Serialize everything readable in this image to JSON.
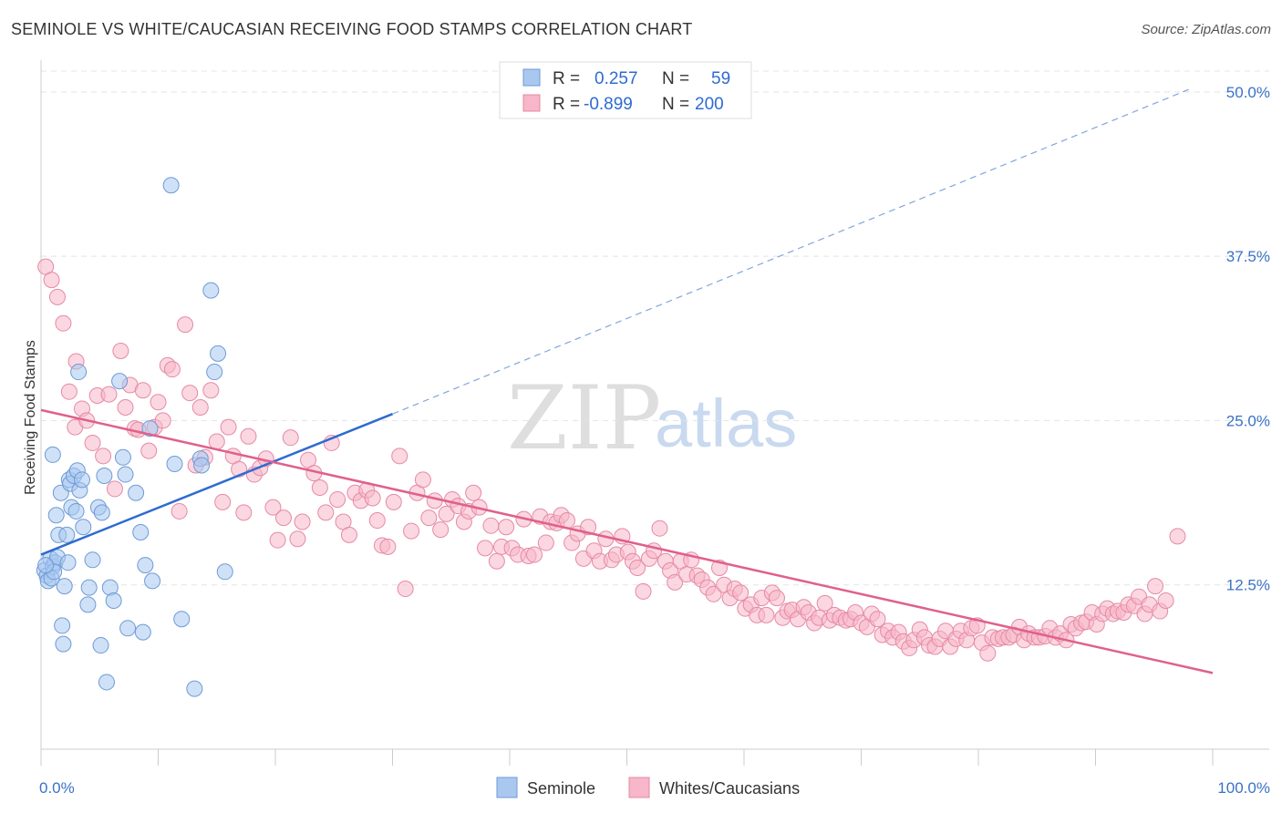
{
  "header": {
    "title": "SEMINOLE VS WHITE/CAUCASIAN RECEIVING FOOD STAMPS CORRELATION CHART",
    "source": "Source: ZipAtlas.com"
  },
  "watermark": {
    "zip": "ZIP",
    "atlas": "atlas"
  },
  "legend_top": {
    "rows": [
      {
        "r_label": "R =",
        "r_value": "0.257",
        "n_label": "N =",
        "n_value": "59",
        "color": "#a8c8f0"
      },
      {
        "r_label": "R =",
        "r_value": "-0.899",
        "n_label": "N =",
        "n_value": "200",
        "color": "#f7b6c9"
      }
    ]
  },
  "legend_bottom": {
    "items": [
      "Seminole",
      "Whites/Caucasians"
    ]
  },
  "chart_data": {
    "type": "scatter",
    "title": "SEMINOLE VS WHITE/CAUCASIAN RECEIVING FOOD STAMPS CORRELATION CHART",
    "xlabel": "",
    "ylabel": "Receiving Food Stamps",
    "xlim": [
      0,
      100
    ],
    "ylim": [
      0,
      52
    ],
    "x_tick_labels": [
      "0.0%",
      "100.0%"
    ],
    "y_ticks": [
      12.5,
      25.0,
      37.5,
      50.0
    ],
    "y_tick_labels": [
      "12.5%",
      "25.0%",
      "37.5%",
      "50.0%"
    ],
    "grid": true,
    "series": [
      {
        "name": "Seminole",
        "color": "#a8c8f0",
        "stroke": "#6f9ad6",
        "line_color": "#2f6bd0",
        "r": 0.257,
        "n": 59,
        "trend": {
          "x0": 0,
          "y0": 14.8,
          "x1": 30,
          "y1": 25.5,
          "dash_to_x": 98,
          "dash_to_y": 50.2
        },
        "points": [
          [
            0.3,
            13.6
          ],
          [
            0.5,
            13.2
          ],
          [
            0.8,
            14.5
          ],
          [
            1.0,
            13.9
          ],
          [
            1.2,
            14.2
          ],
          [
            0.6,
            12.8
          ],
          [
            0.9,
            13.0
          ],
          [
            1.4,
            14.6
          ],
          [
            1.1,
            13.5
          ],
          [
            0.4,
            14.0
          ],
          [
            1.0,
            22.4
          ],
          [
            1.3,
            17.8
          ],
          [
            1.5,
            16.3
          ],
          [
            1.7,
            19.5
          ],
          [
            1.8,
            9.4
          ],
          [
            1.9,
            8.0
          ],
          [
            2.0,
            12.4
          ],
          [
            2.2,
            16.3
          ],
          [
            2.3,
            14.2
          ],
          [
            2.4,
            20.5
          ],
          [
            2.5,
            20.2
          ],
          [
            2.6,
            18.4
          ],
          [
            2.8,
            20.8
          ],
          [
            3.0,
            18.1
          ],
          [
            3.1,
            21.2
          ],
          [
            3.2,
            28.7
          ],
          [
            3.3,
            19.7
          ],
          [
            3.5,
            20.5
          ],
          [
            3.6,
            16.9
          ],
          [
            4.0,
            11.0
          ],
          [
            4.1,
            12.3
          ],
          [
            4.4,
            14.4
          ],
          [
            4.9,
            18.4
          ],
          [
            5.1,
            7.9
          ],
          [
            5.2,
            18.0
          ],
          [
            5.4,
            20.8
          ],
          [
            5.6,
            5.1
          ],
          [
            5.9,
            12.3
          ],
          [
            6.2,
            11.3
          ],
          [
            6.7,
            28.0
          ],
          [
            7.0,
            22.2
          ],
          [
            7.2,
            20.9
          ],
          [
            7.4,
            9.2
          ],
          [
            8.1,
            19.5
          ],
          [
            8.5,
            16.5
          ],
          [
            8.7,
            8.9
          ],
          [
            8.9,
            14.0
          ],
          [
            9.3,
            24.4
          ],
          [
            9.5,
            12.8
          ],
          [
            11.1,
            42.9
          ],
          [
            11.4,
            21.7
          ],
          [
            12.0,
            9.9
          ],
          [
            13.1,
            4.6
          ],
          [
            13.6,
            22.1
          ],
          [
            13.7,
            21.6
          ],
          [
            14.5,
            34.9
          ],
          [
            14.8,
            28.7
          ],
          [
            15.1,
            30.1
          ],
          [
            15.7,
            13.5
          ]
        ]
      },
      {
        "name": "Whites/Caucasians",
        "color": "#f7b6c9",
        "stroke": "#e58aa5",
        "line_color": "#e0608c",
        "r": -0.899,
        "n": 200,
        "trend": {
          "x0": 0,
          "y0": 25.8,
          "x1": 100,
          "y1": 5.8
        },
        "points": [
          [
            0.4,
            36.7
          ],
          [
            0.9,
            35.7
          ],
          [
            1.4,
            34.4
          ],
          [
            1.9,
            32.4
          ],
          [
            2.4,
            27.2
          ],
          [
            2.9,
            24.5
          ],
          [
            3.0,
            29.5
          ],
          [
            3.5,
            25.9
          ],
          [
            3.9,
            25.0
          ],
          [
            4.4,
            23.3
          ],
          [
            4.8,
            26.9
          ],
          [
            5.3,
            22.3
          ],
          [
            5.8,
            27.0
          ],
          [
            6.3,
            19.8
          ],
          [
            6.8,
            30.3
          ],
          [
            7.2,
            26.0
          ],
          [
            7.6,
            27.7
          ],
          [
            8.0,
            24.4
          ],
          [
            8.3,
            24.3
          ],
          [
            8.7,
            27.3
          ],
          [
            9.2,
            22.7
          ],
          [
            9.7,
            24.5
          ],
          [
            10.0,
            26.4
          ],
          [
            10.4,
            25.0
          ],
          [
            10.8,
            29.2
          ],
          [
            11.2,
            28.9
          ],
          [
            11.8,
            18.1
          ],
          [
            12.3,
            32.3
          ],
          [
            12.7,
            27.1
          ],
          [
            13.2,
            21.6
          ],
          [
            13.6,
            26.0
          ],
          [
            14.0,
            22.2
          ],
          [
            14.5,
            27.3
          ],
          [
            15.0,
            23.4
          ],
          [
            15.5,
            18.8
          ],
          [
            16.0,
            24.5
          ],
          [
            16.4,
            22.3
          ],
          [
            16.9,
            21.3
          ],
          [
            17.3,
            18.0
          ],
          [
            17.7,
            23.8
          ],
          [
            18.2,
            20.9
          ],
          [
            18.7,
            21.4
          ],
          [
            19.2,
            22.1
          ],
          [
            19.8,
            18.4
          ],
          [
            20.2,
            15.9
          ],
          [
            20.7,
            17.6
          ],
          [
            21.3,
            23.7
          ],
          [
            21.9,
            16.0
          ],
          [
            22.3,
            17.3
          ],
          [
            22.8,
            22.0
          ],
          [
            23.3,
            21.0
          ],
          [
            23.8,
            19.9
          ],
          [
            24.3,
            18.0
          ],
          [
            24.8,
            23.3
          ],
          [
            25.3,
            19.0
          ],
          [
            25.8,
            17.3
          ],
          [
            26.3,
            16.3
          ],
          [
            26.8,
            19.5
          ],
          [
            27.3,
            18.9
          ],
          [
            27.8,
            19.7
          ],
          [
            28.3,
            19.1
          ],
          [
            28.7,
            17.4
          ],
          [
            29.1,
            15.5
          ],
          [
            29.6,
            15.4
          ],
          [
            30.1,
            18.8
          ],
          [
            30.6,
            22.3
          ],
          [
            31.1,
            12.2
          ],
          [
            31.6,
            16.6
          ],
          [
            32.1,
            19.5
          ],
          [
            32.6,
            20.5
          ],
          [
            33.1,
            17.6
          ],
          [
            33.6,
            18.9
          ],
          [
            34.1,
            16.7
          ],
          [
            34.6,
            17.9
          ],
          [
            35.1,
            19.0
          ],
          [
            35.6,
            18.5
          ],
          [
            36.1,
            17.3
          ],
          [
            36.5,
            18.1
          ],
          [
            36.9,
            19.5
          ],
          [
            37.4,
            18.4
          ],
          [
            37.9,
            15.3
          ],
          [
            38.4,
            17.0
          ],
          [
            38.9,
            14.3
          ],
          [
            39.3,
            15.4
          ],
          [
            39.7,
            16.9
          ],
          [
            40.2,
            15.3
          ],
          [
            40.7,
            14.8
          ],
          [
            41.2,
            17.5
          ],
          [
            41.6,
            14.7
          ],
          [
            42.1,
            14.8
          ],
          [
            42.6,
            17.7
          ],
          [
            43.1,
            15.7
          ],
          [
            43.5,
            17.3
          ],
          [
            44.0,
            17.2
          ],
          [
            44.4,
            17.8
          ],
          [
            44.9,
            17.4
          ],
          [
            45.3,
            15.7
          ],
          [
            45.8,
            16.4
          ],
          [
            46.3,
            14.5
          ],
          [
            46.7,
            16.9
          ],
          [
            47.2,
            15.1
          ],
          [
            47.7,
            14.3
          ],
          [
            48.2,
            16.0
          ],
          [
            48.7,
            14.4
          ],
          [
            49.1,
            14.8
          ],
          [
            49.6,
            16.2
          ],
          [
            50.1,
            15.0
          ],
          [
            50.5,
            14.3
          ],
          [
            50.9,
            13.8
          ],
          [
            51.4,
            12.0
          ],
          [
            51.9,
            14.5
          ],
          [
            52.3,
            15.1
          ],
          [
            52.8,
            16.8
          ],
          [
            53.3,
            14.3
          ],
          [
            53.7,
            13.6
          ],
          [
            54.1,
            12.7
          ],
          [
            54.6,
            14.3
          ],
          [
            55.1,
            13.3
          ],
          [
            55.5,
            14.4
          ],
          [
            56.0,
            13.2
          ],
          [
            56.4,
            12.9
          ],
          [
            56.9,
            12.3
          ],
          [
            57.4,
            11.8
          ],
          [
            57.9,
            13.8
          ],
          [
            58.3,
            12.5
          ],
          [
            58.8,
            11.5
          ],
          [
            59.2,
            12.2
          ],
          [
            59.7,
            11.9
          ],
          [
            60.1,
            10.7
          ],
          [
            60.6,
            11.0
          ],
          [
            61.1,
            10.2
          ],
          [
            61.5,
            11.5
          ],
          [
            61.9,
            10.2
          ],
          [
            62.4,
            11.9
          ],
          [
            62.8,
            11.5
          ],
          [
            63.3,
            10.0
          ],
          [
            63.7,
            10.5
          ],
          [
            64.1,
            10.6
          ],
          [
            64.6,
            9.9
          ],
          [
            65.1,
            10.8
          ],
          [
            65.5,
            10.4
          ],
          [
            66.0,
            9.6
          ],
          [
            66.4,
            10.0
          ],
          [
            66.9,
            11.1
          ],
          [
            67.3,
            9.8
          ],
          [
            67.7,
            10.2
          ],
          [
            68.2,
            10.0
          ],
          [
            68.7,
            9.8
          ],
          [
            69.1,
            9.9
          ],
          [
            69.5,
            10.4
          ],
          [
            70.0,
            9.6
          ],
          [
            70.5,
            9.3
          ],
          [
            70.9,
            10.3
          ],
          [
            71.4,
            9.9
          ],
          [
            71.8,
            8.7
          ],
          [
            72.3,
            9.0
          ],
          [
            72.7,
            8.5
          ],
          [
            73.2,
            8.9
          ],
          [
            73.6,
            8.2
          ],
          [
            74.1,
            7.7
          ],
          [
            74.5,
            8.3
          ],
          [
            75.0,
            9.1
          ],
          [
            75.4,
            8.5
          ],
          [
            75.8,
            7.9
          ],
          [
            76.3,
            7.8
          ],
          [
            76.7,
            8.4
          ],
          [
            77.2,
            9.0
          ],
          [
            77.6,
            7.8
          ],
          [
            78.1,
            8.4
          ],
          [
            78.5,
            9.0
          ],
          [
            79.0,
            8.3
          ],
          [
            79.4,
            9.2
          ],
          [
            79.9,
            9.4
          ],
          [
            80.3,
            8.1
          ],
          [
            80.8,
            7.3
          ],
          [
            81.2,
            8.5
          ],
          [
            81.7,
            8.4
          ],
          [
            82.1,
            8.5
          ],
          [
            82.6,
            8.5
          ],
          [
            83.0,
            8.7
          ],
          [
            83.5,
            9.3
          ],
          [
            83.9,
            8.3
          ],
          [
            84.3,
            8.8
          ],
          [
            84.8,
            8.5
          ],
          [
            85.2,
            8.5
          ],
          [
            85.7,
            8.6
          ],
          [
            86.1,
            9.2
          ],
          [
            86.6,
            8.5
          ],
          [
            87.0,
            8.8
          ],
          [
            87.5,
            8.3
          ],
          [
            87.9,
            9.5
          ],
          [
            88.3,
            9.2
          ],
          [
            88.8,
            9.6
          ],
          [
            89.2,
            9.7
          ],
          [
            89.7,
            10.4
          ],
          [
            90.1,
            9.5
          ],
          [
            90.6,
            10.3
          ],
          [
            91.0,
            10.7
          ],
          [
            91.5,
            10.3
          ],
          [
            91.9,
            10.5
          ],
          [
            92.4,
            10.4
          ],
          [
            92.8,
            11.0
          ],
          [
            93.3,
            10.9
          ],
          [
            93.7,
            11.6
          ],
          [
            94.2,
            10.3
          ],
          [
            94.6,
            11.0
          ],
          [
            95.1,
            12.4
          ],
          [
            95.5,
            10.5
          ],
          [
            96.0,
            11.3
          ],
          [
            97.0,
            16.2
          ]
        ]
      }
    ]
  }
}
